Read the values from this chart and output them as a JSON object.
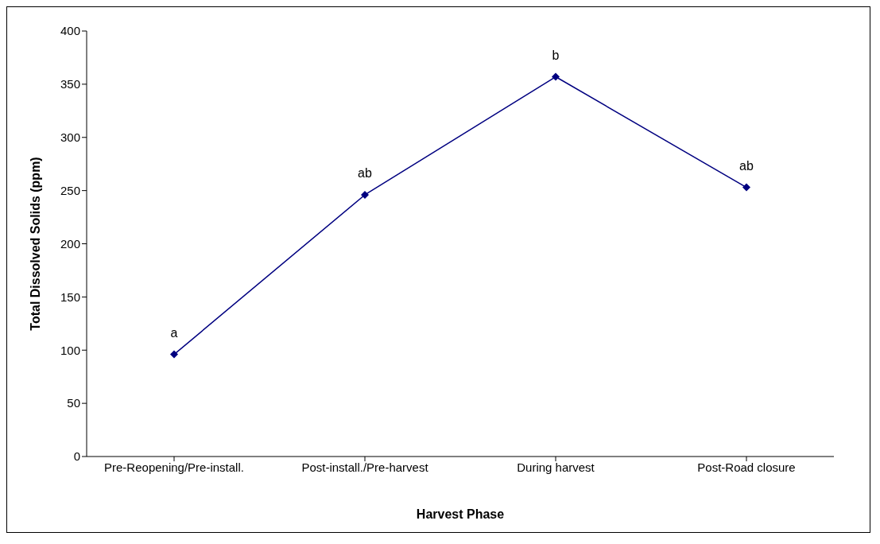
{
  "chart_data": {
    "type": "line",
    "xlabel": "Harvest Phase",
    "ylabel": "Total Dissolved Solids (ppm)",
    "categories": [
      "Pre-Reopening/Pre-install.",
      "Post-install./Pre-harvest",
      "During harvest",
      "Post-Road closure"
    ],
    "series": [
      {
        "color": "#000080",
        "values": [
          96,
          246,
          357,
          253
        ]
      }
    ],
    "ylim": [
      0,
      400
    ],
    "yticks": [
      0,
      50,
      100,
      150,
      200,
      250,
      300,
      350,
      400
    ],
    "grid": false,
    "legend": false,
    "marker": "diamond",
    "line_style": "solid",
    "annotations": [
      {
        "text": "a",
        "x": "Pre-Reopening/Pre-install.",
        "y": 96
      },
      {
        "text": "ab",
        "x": "Post-install./Pre-harvest",
        "y": 246
      },
      {
        "text": "b",
        "x": "During harvest",
        "y": 357
      },
      {
        "text": "ab",
        "x": "Post-Road closure",
        "y": 253
      }
    ]
  }
}
